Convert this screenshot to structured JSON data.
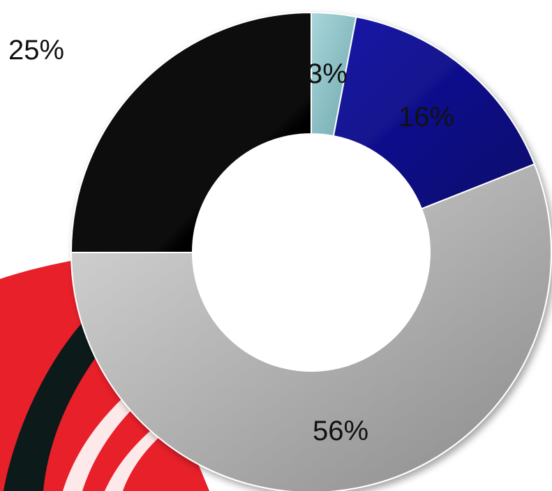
{
  "chart_data": {
    "type": "donut",
    "title": "",
    "slices": [
      {
        "label": "3%",
        "value": 3,
        "color": "#8fc3c8"
      },
      {
        "label": "16%",
        "value": 16,
        "color": "#0a0a8c"
      },
      {
        "label": "56%",
        "value": 56,
        "color": "#b8b8b8"
      },
      {
        "label": "25%",
        "value": 25,
        "color": "#050505"
      }
    ],
    "start": "top",
    "direction": "clockwise"
  },
  "decoration": {
    "logo_color": "#e8202a",
    "logo_stripe_color": "#0d1a1a"
  }
}
